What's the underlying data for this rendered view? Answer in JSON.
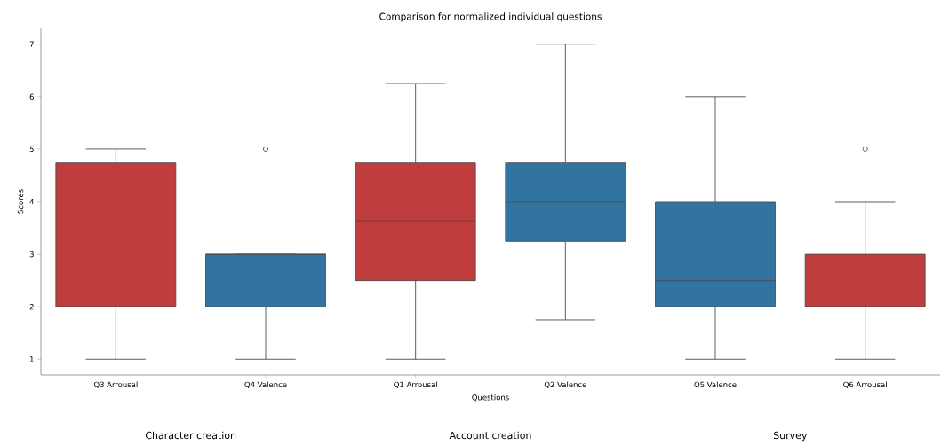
{
  "chart_data": {
    "type": "box",
    "title": "Comparison for normalized individual questions",
    "xlabel": "Questions",
    "ylabel": "Scores",
    "categories": [
      "Q3 Arrousal",
      "Q4 Valence",
      "Q1 Arrousal",
      "Q2 Valence",
      "Q5 Valence",
      "Q6 Arrousal"
    ],
    "colors": [
      "#c03d3e",
      "#3274a1",
      "#c03d3e",
      "#3274a1",
      "#3274a1",
      "#c03d3e"
    ],
    "boxes": [
      {
        "low": 1,
        "q1": 2,
        "median": 2,
        "q3": 4.75,
        "high": 5
      },
      {
        "low": 1,
        "q1": 2,
        "median": 3,
        "q3": 3,
        "high": 3,
        "outliers": [
          5
        ]
      },
      {
        "low": 1,
        "q1": 2.5,
        "median": 3.625,
        "q3": 4.75,
        "high": 6.25
      },
      {
        "low": 1.75,
        "q1": 3.25,
        "median": 4,
        "q3": 4.75,
        "high": 7
      },
      {
        "low": 1,
        "q1": 2,
        "median": 2.5,
        "q3": 4,
        "high": 6
      },
      {
        "low": 1,
        "q1": 2,
        "median": 2,
        "q3": 3,
        "high": 4,
        "outliers": [
          5
        ]
      }
    ],
    "ylim": [
      0.7,
      7.3
    ],
    "yticks": [
      1,
      2,
      3,
      4,
      5,
      6,
      7
    ],
    "annotations": [
      "Character creation",
      "Account creation",
      "Survey"
    ]
  }
}
